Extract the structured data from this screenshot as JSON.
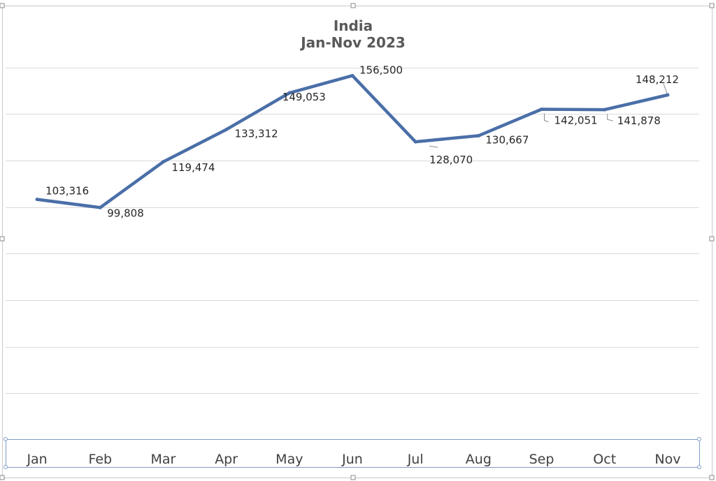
{
  "chart_data": {
    "type": "line",
    "title": "India",
    "subtitle": "Jan-Nov 2023",
    "categories": [
      "Jan",
      "Feb",
      "Mar",
      "Apr",
      "May",
      "Jun",
      "Jul",
      "Aug",
      "Sep",
      "Oct",
      "Nov"
    ],
    "series": [
      {
        "values": [
          103316,
          99808,
          119474,
          133312,
          149053,
          156500,
          128070,
          130667,
          142051,
          141878,
          148212
        ]
      }
    ],
    "data_labels": [
      "103,316",
      "99,808",
      "119,474",
      "133,312",
      "149,053",
      "156,500",
      "128,070",
      "130,667",
      "142,051",
      "141,878",
      "148,212"
    ],
    "ylim": [
      0,
      180000
    ],
    "y_major_unit": 20000,
    "gridlines": true,
    "y_axis_labels_shown": false,
    "legend": "none",
    "xlabel": "",
    "ylabel": "",
    "colors": {
      "series_line": "#4a6fa8",
      "gridline": "#d9d9d9",
      "title": "#595959"
    }
  }
}
